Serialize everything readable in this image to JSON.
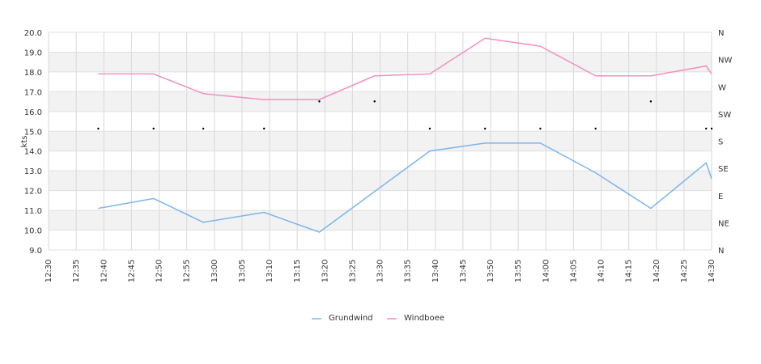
{
  "chart_data": {
    "type": "line",
    "ylabel": "kts",
    "ylim": [
      9.0,
      20.0
    ],
    "y_ticks": [
      "9.0",
      "10.0",
      "11.0",
      "12.0",
      "13.0",
      "14.0",
      "15.0",
      "16.0",
      "17.0",
      "18.0",
      "19.0",
      "20.0"
    ],
    "x_range": [
      "12:30",
      "14:30"
    ],
    "x_ticks": [
      "12:30",
      "12:35",
      "12:40",
      "12:45",
      "12:50",
      "12:55",
      "13:00",
      "13:05",
      "13:10",
      "13:15",
      "13:20",
      "13:25",
      "13:30",
      "13:35",
      "13:40",
      "13:45",
      "13:50",
      "13:55",
      "14:00",
      "14:05",
      "14:10",
      "14:15",
      "14:20",
      "14:25",
      "14:30"
    ],
    "right_axis_labels": [
      "N",
      "NW",
      "W",
      "SW",
      "S",
      "SE",
      "E",
      "NE",
      "N"
    ],
    "grid": true,
    "legend_position": "bottom-center",
    "series": [
      {
        "name": "Grundwind",
        "color": "#7cb5ec",
        "points": [
          [
            "12:39",
            11.1
          ],
          [
            "12:49",
            11.6
          ],
          [
            "12:58",
            10.4
          ],
          [
            "13:09",
            10.9
          ],
          [
            "13:19",
            9.9
          ],
          [
            "13:39",
            14.0
          ],
          [
            "13:49",
            14.4
          ],
          [
            "13:59",
            14.4
          ],
          [
            "14:09",
            12.9
          ],
          [
            "14:19",
            11.1
          ],
          [
            "14:29",
            13.4
          ],
          [
            "14:30",
            12.6
          ]
        ]
      },
      {
        "name": "Windboee",
        "color": "#f48fbf",
        "points": [
          [
            "12:39",
            17.9
          ],
          [
            "12:49",
            17.9
          ],
          [
            "12:58",
            16.9
          ],
          [
            "13:09",
            16.6
          ],
          [
            "13:19",
            16.6
          ],
          [
            "13:29",
            17.8
          ],
          [
            "13:39",
            17.9
          ],
          [
            "13:49",
            19.7
          ],
          [
            "13:59",
            19.3
          ],
          [
            "14:09",
            17.8
          ],
          [
            "14:19",
            17.8
          ],
          [
            "14:29",
            18.3
          ],
          [
            "14:30",
            17.9
          ]
        ]
      }
    ],
    "direction_markers": [
      [
        "12:39",
        "S"
      ],
      [
        "12:49",
        "S"
      ],
      [
        "12:58",
        "S"
      ],
      [
        "13:09",
        "S"
      ],
      [
        "13:19",
        "SW"
      ],
      [
        "13:29",
        "SW"
      ],
      [
        "13:39",
        "S"
      ],
      [
        "13:49",
        "S"
      ],
      [
        "13:59",
        "S"
      ],
      [
        "14:09",
        "S"
      ],
      [
        "14:19",
        "SW"
      ],
      [
        "14:29",
        "S"
      ],
      [
        "14:30",
        "S"
      ]
    ]
  }
}
